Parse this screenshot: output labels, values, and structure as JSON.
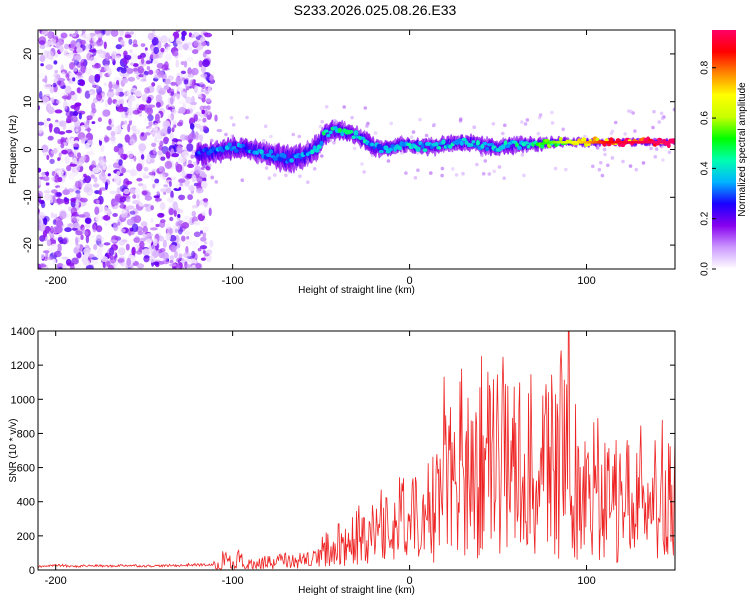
{
  "figure": {
    "title": "S233.2026.025.08.26.E33"
  },
  "chart_data": [
    {
      "type": "heatmap",
      "title": "S233.2026.025.08.26.E33",
      "xlabel": "Height of straight line (km)",
      "ylabel": "Frequency (Hz)",
      "xlim": [
        -210,
        150
      ],
      "ylim": [
        -25,
        25
      ],
      "xticks": [
        "-200",
        "-100",
        "0",
        "100"
      ],
      "xtick_values": [
        -200,
        -100,
        0,
        100
      ],
      "yticks": [
        "-20",
        "-10",
        "0",
        "10",
        "20"
      ],
      "ytick_values": [
        -20,
        -10,
        0,
        10,
        20
      ],
      "colorbar": {
        "label": "Normalized spectral amplitude",
        "range": [
          0,
          0.95
        ],
        "ticks": [
          "0.0",
          "0.2",
          "0.4",
          "0.6",
          "0.8"
        ],
        "tick_values": [
          0.0,
          0.2,
          0.4,
          0.6,
          0.8
        ],
        "colormap": [
          "#ffffff",
          "#cc99ff",
          "#8800ee",
          "#1a00ff",
          "#00b4ff",
          "#00ffb0",
          "#00ff00",
          "#c8ff00",
          "#ffff00",
          "#ff8800",
          "#ff0000",
          "#ff0066"
        ]
      },
      "noise_region": {
        "x_range": [
          -210,
          -113
        ],
        "freq_range": [
          -25,
          25
        ]
      },
      "ridge": {
        "x": [
          -120,
          -110,
          -100,
          -90,
          -80,
          -70,
          -60,
          -52,
          -48,
          -44,
          -40,
          -35,
          -30,
          -25,
          -20,
          -15,
          -10,
          -5,
          0,
          10,
          20,
          30,
          40,
          50,
          60,
          70,
          80,
          90,
          100,
          110,
          120,
          130,
          140,
          150
        ],
        "freq": [
          -1,
          -0.5,
          0.5,
          0,
          -1,
          -2,
          -1.5,
          0.5,
          3,
          4,
          4,
          3.5,
          3,
          2,
          0.5,
          0,
          0.5,
          1,
          1,
          0.5,
          1,
          1.5,
          1,
          0.5,
          1,
          1,
          1.5,
          1.5,
          1.5,
          1.5,
          1.5,
          1.5,
          1.5,
          1.5
        ],
        "spread_hz": [
          4,
          4,
          4,
          4,
          4.5,
          5,
          5,
          5,
          4,
          3.5,
          3.5,
          3.5,
          3.5,
          3.5,
          3.5,
          3,
          3,
          3,
          3,
          3,
          3,
          3,
          3,
          3,
          3,
          2.5,
          2,
          1.5,
          1.5,
          1.2,
          1.2,
          1,
          1,
          1
        ],
        "peak_amplitude": [
          0.3,
          0.35,
          0.35,
          0.35,
          0.35,
          0.35,
          0.35,
          0.4,
          0.45,
          0.45,
          0.45,
          0.45,
          0.45,
          0.4,
          0.35,
          0.35,
          0.35,
          0.4,
          0.4,
          0.4,
          0.4,
          0.4,
          0.4,
          0.4,
          0.45,
          0.5,
          0.55,
          0.65,
          0.75,
          0.85,
          0.9,
          0.92,
          0.95,
          0.95
        ]
      }
    },
    {
      "type": "line",
      "xlabel": "Height of straight line (km)",
      "ylabel": "SNR (10 * v/v)",
      "xlim": [
        -210,
        150
      ],
      "ylim": [
        0,
        1400
      ],
      "xticks": [
        "-200",
        "-100",
        "0",
        "100"
      ],
      "xtick_values": [
        -200,
        -100,
        0,
        100
      ],
      "yticks": [
        "0",
        "200",
        "400",
        "600",
        "800",
        "1000",
        "1200",
        "1400"
      ],
      "ytick_values": [
        0,
        200,
        400,
        600,
        800,
        1000,
        1200,
        1400
      ],
      "series": [
        {
          "name": "SNR",
          "color": "#ee2222",
          "x": [
            -210,
            -200,
            -190,
            -180,
            -170,
            -160,
            -150,
            -140,
            -130,
            -120,
            -110,
            -105,
            -100,
            -95,
            -90,
            -85,
            -80,
            -75,
            -70,
            -65,
            -60,
            -55,
            -50,
            -45,
            -40,
            -35,
            -30,
            -25,
            -20,
            -15,
            -10,
            -5,
            0,
            5,
            10,
            15,
            20,
            25,
            30,
            35,
            40,
            45,
            50,
            55,
            60,
            65,
            70,
            75,
            80,
            85,
            90,
            95,
            100,
            105,
            110,
            115,
            120,
            125,
            130,
            135,
            140,
            145,
            150
          ],
          "y": [
            22,
            28,
            22,
            26,
            24,
            28,
            25,
            26,
            28,
            32,
            30,
            45,
            110,
            60,
            55,
            85,
            70,
            60,
            90,
            95,
            120,
            100,
            140,
            220,
            180,
            330,
            220,
            400,
            280,
            500,
            300,
            600,
            310,
            520,
            340,
            700,
            320,
            1100,
            420,
            1200,
            450,
            1150,
            400,
            1250,
            380,
            1200,
            420,
            1100,
            350,
            1250,
            300,
            1050,
            260,
            850,
            250,
            760,
            420,
            820,
            480,
            740,
            600,
            860,
            580
          ]
        }
      ],
      "peak": {
        "x": 90,
        "y": 1410
      }
    }
  ]
}
